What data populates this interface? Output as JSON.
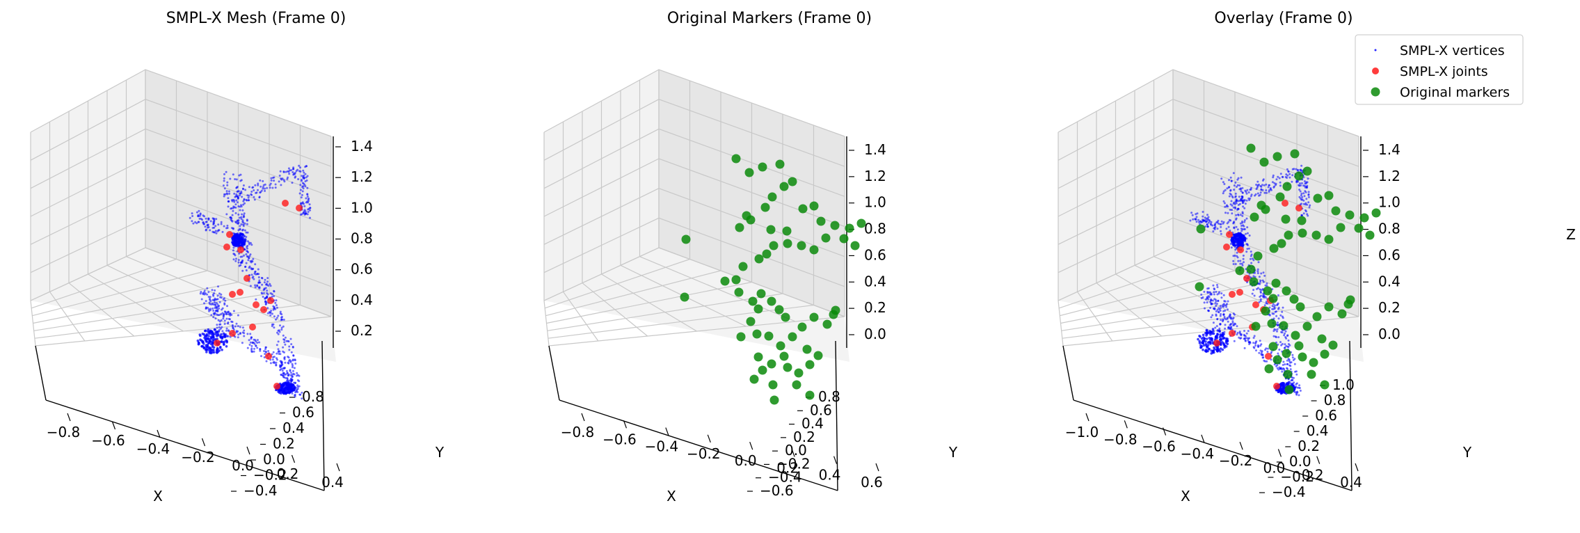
{
  "chart_data": [
    {
      "type": "scatter",
      "title": "SMPL-X Mesh (Frame 0)",
      "xlabel": "X",
      "ylabel": "Y",
      "zlabel": "",
      "xlim": [
        -0.95,
        0.5
      ],
      "ylim": [
        -0.45,
        1.0
      ],
      "zlim": [
        0.05,
        1.5
      ],
      "xticks": [
        "−0.8",
        "−0.6",
        "−0.4",
        "−0.2",
        "0.0",
        "0.2",
        "0.4"
      ],
      "yticks": [
        "−0.4",
        "−0.2",
        "0.0",
        "0.2",
        "0.4",
        "0.6",
        "0.8"
      ],
      "zticks": [
        "0.2",
        "0.4",
        "0.6",
        "0.8",
        "1.0",
        "1.2",
        "1.4"
      ],
      "grid": true,
      "series": [
        {
          "name": "SMPL-X vertices",
          "kind": "vertices",
          "color": "#0000ff"
        },
        {
          "name": "SMPL-X joints",
          "kind": "joints",
          "color": "#ff0000"
        }
      ]
    },
    {
      "type": "scatter",
      "title": "Original Markers (Frame 0)",
      "xlabel": "X",
      "ylabel": "Y",
      "zlabel": "",
      "xlim": [
        -0.95,
        0.65
      ],
      "ylim": [
        -0.65,
        0.95
      ],
      "zlim": [
        -0.05,
        1.55
      ],
      "xticks": [
        "−0.8",
        "−0.6",
        "−0.4",
        "−0.2",
        "0.0",
        "0.2",
        "0.4",
        "0.6"
      ],
      "yticks": [
        "−0.6",
        "−0.4",
        "−0.2",
        "0.0",
        "0.2",
        "0.4",
        "0.6",
        "0.8"
      ],
      "zticks": [
        "0.0",
        "0.2",
        "0.4",
        "0.6",
        "0.8",
        "1.0",
        "1.2",
        "1.4"
      ],
      "grid": true,
      "series": [
        {
          "name": "Original markers",
          "kind": "markers",
          "color": "#008000"
        }
      ]
    },
    {
      "type": "scatter",
      "title": "Overlay (Frame 0)",
      "xlabel": "X",
      "ylabel": "Y",
      "zlabel": "Z",
      "xlim": [
        -1.1,
        0.55
      ],
      "ylim": [
        -0.55,
        1.1
      ],
      "zlim": [
        -0.05,
        1.55
      ],
      "xticks": [
        "−1.0",
        "−0.8",
        "−0.6",
        "−0.4",
        "−0.2",
        "0.0",
        "0.2",
        "0.4"
      ],
      "yticks": [
        "−0.4",
        "−0.2",
        "0.0",
        "0.2",
        "0.4",
        "0.6",
        "0.8",
        "1.0"
      ],
      "zticks": [
        "0.0",
        "0.2",
        "0.4",
        "0.6",
        "0.8",
        "1.0",
        "1.2",
        "1.4"
      ],
      "grid": true,
      "legend": "top-right",
      "series": [
        {
          "name": "SMPL-X vertices",
          "kind": "vertices",
          "color": "#0000ff"
        },
        {
          "name": "SMPL-X joints",
          "kind": "joints",
          "color": "#ff0000"
        },
        {
          "name": "Original markers",
          "kind": "markers",
          "color": "#008000"
        }
      ]
    }
  ]
}
